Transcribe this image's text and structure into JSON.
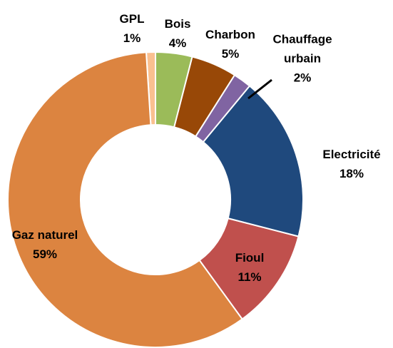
{
  "chart_data": {
    "type": "donut",
    "categories": [
      "Bois",
      "Charbon",
      "Chauffage urbain",
      "Electricité",
      "Fioul",
      "Gaz naturel",
      "GPL"
    ],
    "values": [
      4,
      5,
      2,
      18,
      11,
      59,
      1
    ],
    "value_labels": [
      "4%",
      "5%",
      "2%",
      "18%",
      "11%",
      "59%",
      "1%"
    ],
    "colors": [
      "#9bbb59",
      "#984807",
      "#8064a2",
      "#1f497d",
      "#c0504d",
      "#dc8440",
      "#fac090"
    ]
  }
}
